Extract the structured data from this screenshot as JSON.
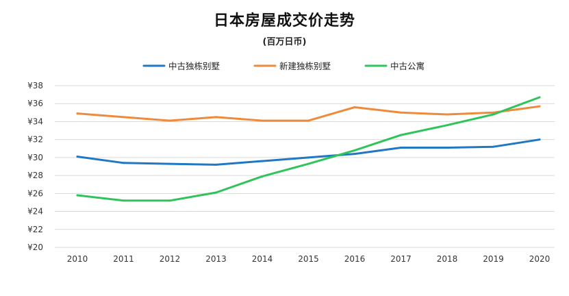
{
  "chart_data": {
    "type": "line",
    "title": "日本房屋成交价走势",
    "subtitle": "(百万日币)",
    "xlabel": "",
    "ylabel": "",
    "categories": [
      "2010",
      "2011",
      "2012",
      "2013",
      "2014",
      "2015",
      "2016",
      "2017",
      "2018",
      "2019",
      "2020"
    ],
    "ylim": [
      20,
      38
    ],
    "yticks": [
      "¥20",
      "¥22",
      "¥24",
      "¥26",
      "¥28",
      "¥30",
      "¥32",
      "¥34",
      "¥36",
      "¥38"
    ],
    "ytick_values": [
      20,
      22,
      24,
      26,
      28,
      30,
      32,
      34,
      36,
      38
    ],
    "grid": true,
    "legend_position": "top-center",
    "series": [
      {
        "name": "中古独栋别墅",
        "color": "#1f78c1",
        "values": [
          30.1,
          29.4,
          29.3,
          29.2,
          29.6,
          30.0,
          30.4,
          31.1,
          31.1,
          31.2,
          32.0
        ]
      },
      {
        "name": "新建独栋别墅",
        "color": "#ee8a3a",
        "values": [
          34.9,
          34.5,
          34.1,
          34.5,
          34.1,
          34.1,
          35.6,
          35.0,
          34.8,
          35.0,
          35.7
        ]
      },
      {
        "name": "中古公寓",
        "color": "#2ec45a",
        "values": [
          25.8,
          25.2,
          25.2,
          26.1,
          27.9,
          29.3,
          30.8,
          32.5,
          33.6,
          34.8,
          36.7
        ]
      }
    ]
  }
}
